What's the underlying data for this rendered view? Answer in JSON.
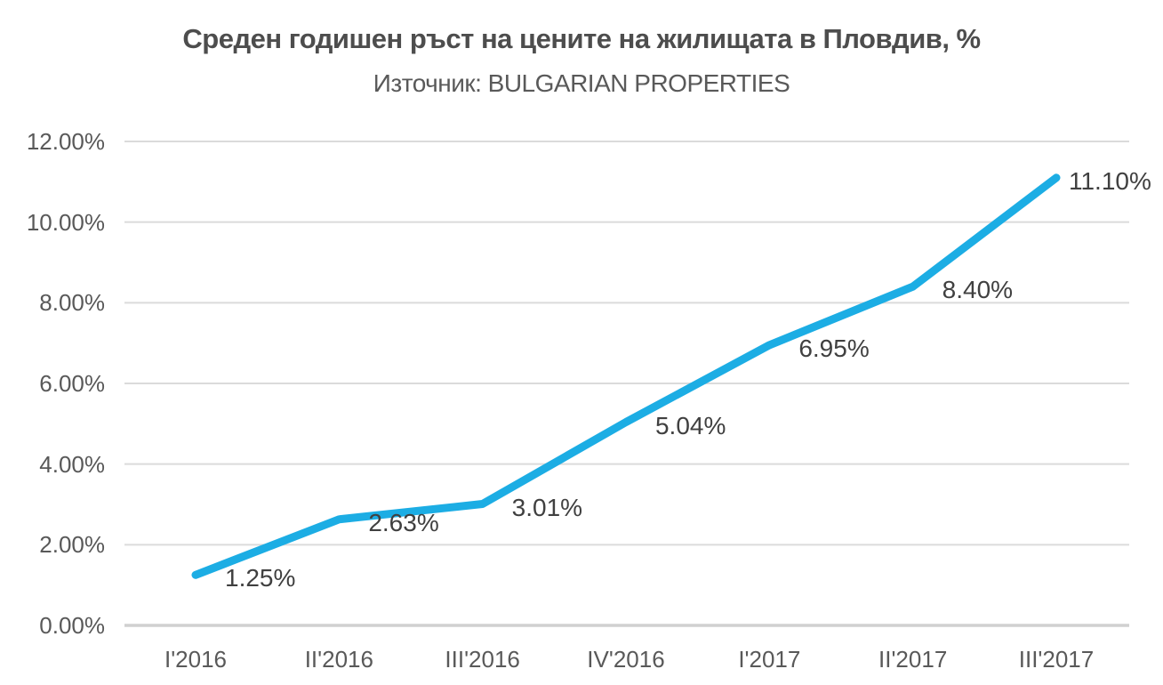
{
  "chart": {
    "title": "Среден годишен ръст на цените на жилищата в Пловдив, %",
    "subtitle": "Източник: BULGARIAN PROPERTIES"
  },
  "chart_data": {
    "type": "line",
    "title": "Среден годишен ръст на цените на жилищата в Пловдив, %",
    "subtitle": "Източник: BULGARIAN PROPERTIES",
    "categories": [
      "I'2016",
      "II'2016",
      "III'2016",
      "IV'2016",
      "I'2017",
      "II'2017",
      "III'2017"
    ],
    "series": [
      {
        "name": "Среден годишен ръст",
        "values": [
          1.25,
          2.63,
          3.01,
          5.04,
          6.95,
          8.4,
          11.1
        ],
        "data_labels": [
          "1.25%",
          "2.63%",
          "3.01%",
          "5.04%",
          "6.95%",
          "8.40%",
          "11.10%"
        ]
      }
    ],
    "xlabel": "",
    "ylabel": "",
    "ylim": [
      0,
      12
    ],
    "ytick_step": 2,
    "ytick_labels": [
      "0.00%",
      "2.00%",
      "4.00%",
      "6.00%",
      "8.00%",
      "10.00%",
      "12.00%"
    ],
    "grid": "horizontal",
    "legend": "none"
  },
  "colors": {
    "line": "#1CADE4",
    "gridline": "#DBDBDB",
    "axis_line": "#D0D0D0",
    "title": "#4D4D4D",
    "subtitle": "#595959",
    "tick_label": "#595959",
    "data_label": "#404040"
  }
}
